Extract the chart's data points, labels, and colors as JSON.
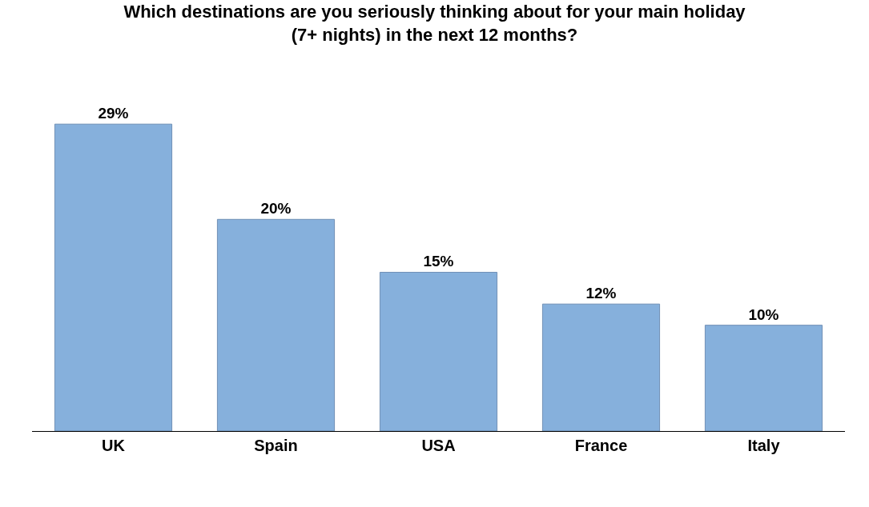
{
  "chart_data": {
    "type": "bar",
    "title": "Which destinations are you seriously thinking about for your main holiday (7+ nights) in the next 12 months?",
    "categories": [
      "UK",
      "Spain",
      "USA",
      "France",
      "Italy"
    ],
    "values": [
      29,
      20,
      15,
      12,
      10
    ],
    "value_labels": [
      "29%",
      "20%",
      "15%",
      "12%",
      "10%"
    ],
    "color": "#86b0dc"
  }
}
